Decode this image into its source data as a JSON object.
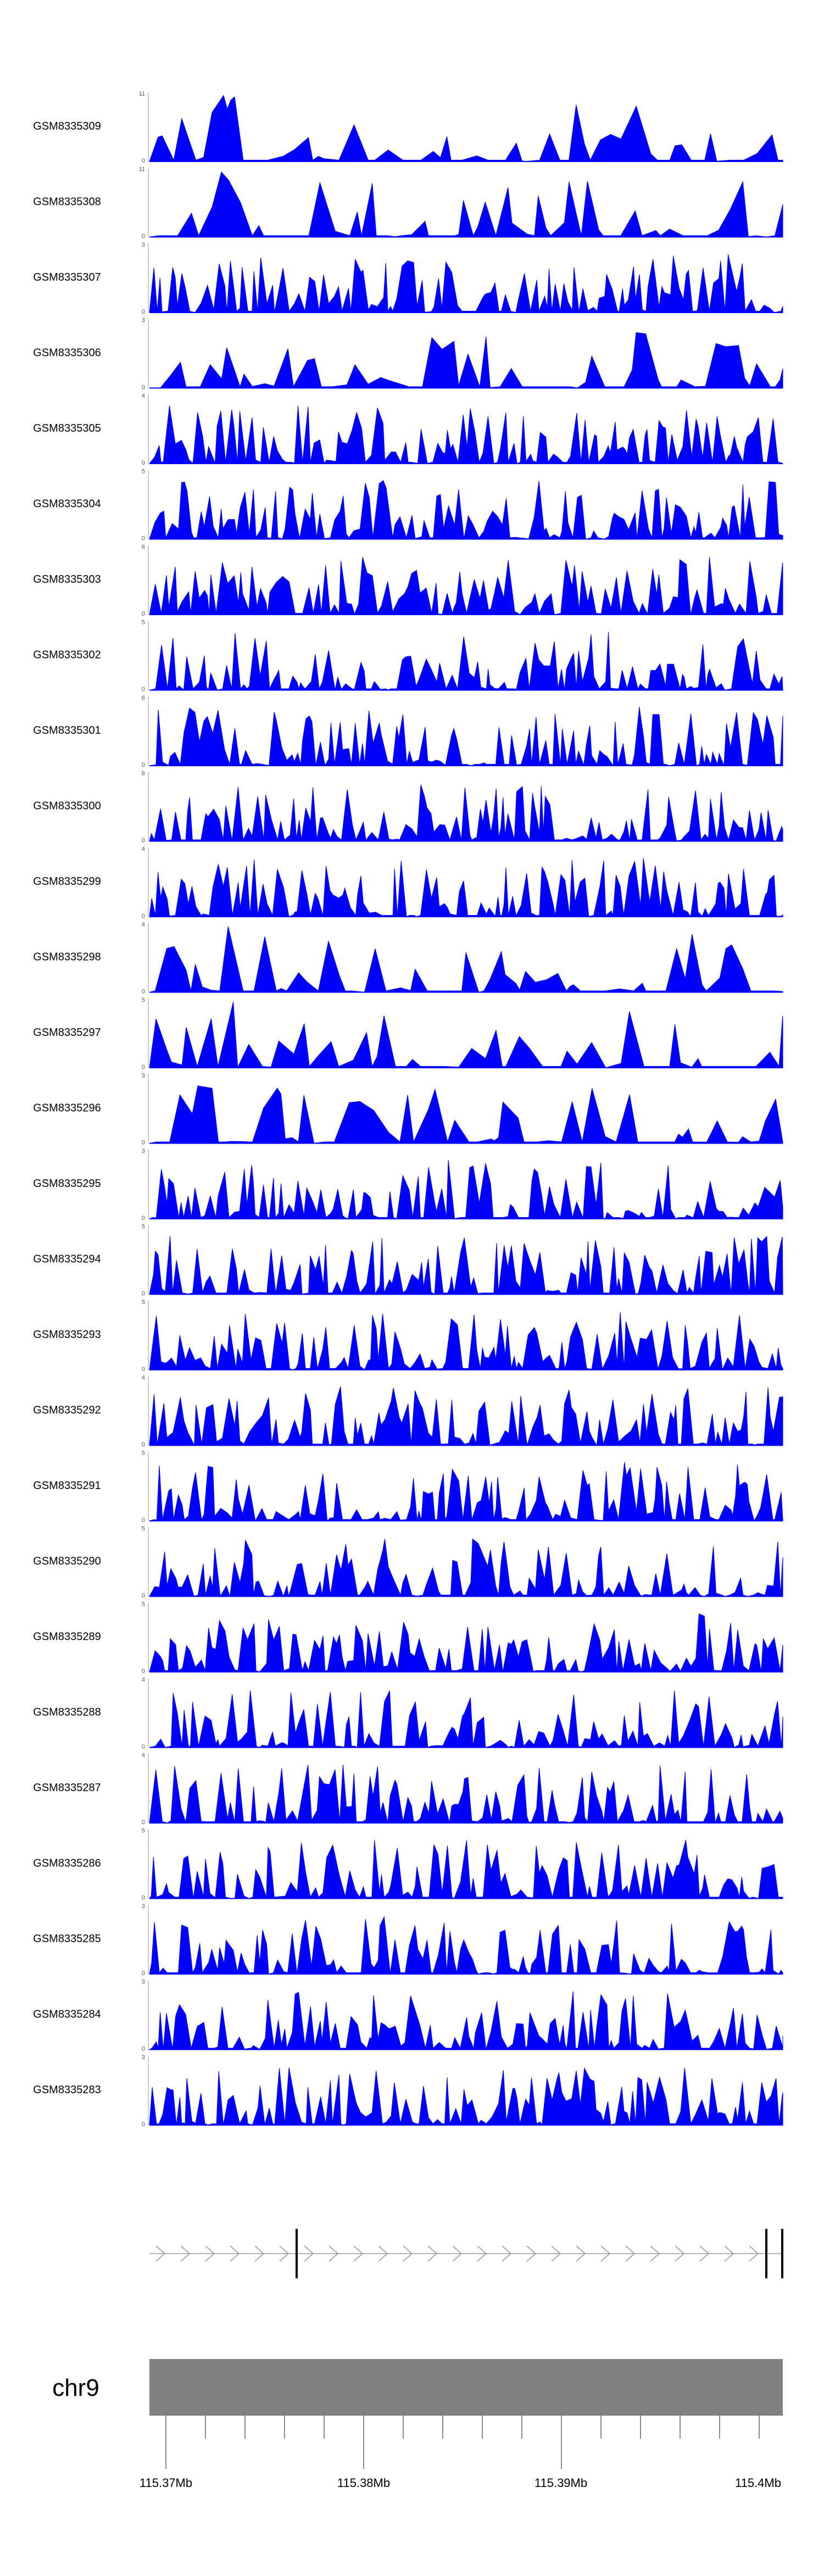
{
  "chart_data": {
    "type": "area",
    "track_color": "#0000ff",
    "ideogram_color": "#808080",
    "chromosome": "chr9",
    "x_axis_ticks": [
      "115.37Mb",
      "115.38Mb",
      "115.39Mb",
      "115.4Mb"
    ],
    "tracks": [
      {
        "name": "GSM8335309",
        "ymax": "11",
        "ymin": "0"
      },
      {
        "name": "GSM8335308",
        "ymax": "11",
        "ymin": "0"
      },
      {
        "name": "GSM8335307",
        "ymax": "3",
        "ymin": "0"
      },
      {
        "name": "GSM8335306",
        "ymax": "3",
        "ymin": "0"
      },
      {
        "name": "GSM8335305",
        "ymax": "4",
        "ymin": "0"
      },
      {
        "name": "GSM8335304",
        "ymax": "5",
        "ymin": "0"
      },
      {
        "name": "GSM8335303",
        "ymax": "6",
        "ymin": "0"
      },
      {
        "name": "GSM8335302",
        "ymax": "5",
        "ymin": "0"
      },
      {
        "name": "GSM8335301",
        "ymax": "6",
        "ymin": "0"
      },
      {
        "name": "GSM8335300",
        "ymax": "6",
        "ymin": "0"
      },
      {
        "name": "GSM8335299",
        "ymax": "4",
        "ymin": "0"
      },
      {
        "name": "GSM8335298",
        "ymax": "4",
        "ymin": "0"
      },
      {
        "name": "GSM8335297",
        "ymax": "5",
        "ymin": "0"
      },
      {
        "name": "GSM8335296",
        "ymax": "3",
        "ymin": "0"
      },
      {
        "name": "GSM8335295",
        "ymax": "3",
        "ymin": "0"
      },
      {
        "name": "GSM8335294",
        "ymax": "5",
        "ymin": "0"
      },
      {
        "name": "GSM8335293",
        "ymax": "5",
        "ymin": "0"
      },
      {
        "name": "GSM8335292",
        "ymax": "4",
        "ymin": "0"
      },
      {
        "name": "GSM8335291",
        "ymax": "5",
        "ymin": "0"
      },
      {
        "name": "GSM8335290",
        "ymax": "5",
        "ymin": "0"
      },
      {
        "name": "GSM8335289",
        "ymax": "5",
        "ymin": "0"
      },
      {
        "name": "GSM8335288",
        "ymax": "4",
        "ymin": "0"
      },
      {
        "name": "GSM8335287",
        "ymax": "4",
        "ymin": "0"
      },
      {
        "name": "GSM8335286",
        "ymax": "5",
        "ymin": "0"
      },
      {
        "name": "GSM8335285",
        "ymax": "3",
        "ymin": "0"
      },
      {
        "name": "GSM8335284",
        "ymax": "3",
        "ymin": "0"
      },
      {
        "name": "GSM8335283",
        "ymax": "3",
        "ymin": "0"
      }
    ]
  }
}
